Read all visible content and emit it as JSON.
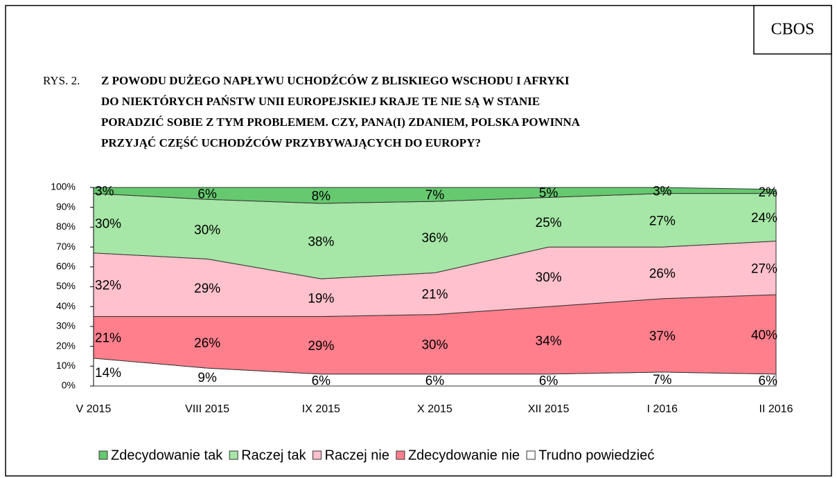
{
  "chart_data": {
    "type": "stacked_area",
    "corner_label": "CBOS",
    "title_prefix": "RYS. 2.",
    "title_lines": [
      "Z POWODU DUŻEGO NAPŁYWU UCHODŹCÓW Z BLISKIEGO WSCHODU I AFRYKI",
      "DO NIEKTÓRYCH PAŃSTW UNII EUROPEJSKIEJ KRAJE TE NIE SĄ W STANIE",
      "PORADZIĆ SOBIE Z TYM PROBLEMEM. CZY, PANA(I) ZDANIEM, POLSKA POWINNA",
      "PRZYJĄĆ CZĘŚĆ UCHODŹCÓW PRZYBYWAJĄCYCH DO EUROPY?"
    ],
    "categories": [
      "V 2015",
      "VIII 2015",
      "IX 2015",
      "X 2015",
      "XII 2015",
      "I 2016",
      "II 2016"
    ],
    "series": [
      {
        "name": "Zdecydowanie tak",
        "color": "#66c96f",
        "values": [
          3,
          6,
          8,
          7,
          5,
          3,
          2
        ],
        "value_labels": [
          "3%",
          "6%",
          "8%",
          "7%",
          "5%",
          "3%",
          "2%"
        ]
      },
      {
        "name": "Raczej tak",
        "color": "#a6e6a6",
        "values": [
          30,
          30,
          38,
          36,
          25,
          27,
          24
        ],
        "value_labels": [
          "30%",
          "30%",
          "38%",
          "36%",
          "25%",
          "27%",
          "24%"
        ]
      },
      {
        "name": "Raczej nie",
        "color": "#ffc1cc",
        "values": [
          32,
          29,
          19,
          21,
          30,
          26,
          27
        ],
        "value_labels": [
          "32%",
          "29%",
          "19%",
          "21%",
          "30%",
          "26%",
          "27%"
        ]
      },
      {
        "name": "Zdecydowanie nie",
        "color": "#ff7f8c",
        "values": [
          21,
          26,
          29,
          30,
          34,
          37,
          40
        ],
        "value_labels": [
          "21%",
          "26%",
          "29%",
          "30%",
          "34%",
          "37%",
          "40%"
        ]
      },
      {
        "name": "Trudno powiedzieć",
        "color": "#ffffff",
        "values": [
          14,
          9,
          6,
          6,
          6,
          7,
          6
        ],
        "value_labels": [
          "14%",
          "9%",
          "6%",
          "6%",
          "6%",
          "7%",
          "6%"
        ]
      }
    ],
    "ylim": [
      0,
      100
    ],
    "yticks": [
      {
        "value": 0,
        "label": "0%"
      },
      {
        "value": 10,
        "label": "10%"
      },
      {
        "value": 20,
        "label": "20%"
      },
      {
        "value": 30,
        "label": "30%"
      },
      {
        "value": 40,
        "label": "40%"
      },
      {
        "value": 50,
        "label": "50%"
      },
      {
        "value": 60,
        "label": "60%"
      },
      {
        "value": 70,
        "label": "70%"
      },
      {
        "value": 80,
        "label": "80%"
      },
      {
        "value": 90,
        "label": "90%"
      },
      {
        "value": 100,
        "label": "100%"
      }
    ]
  }
}
